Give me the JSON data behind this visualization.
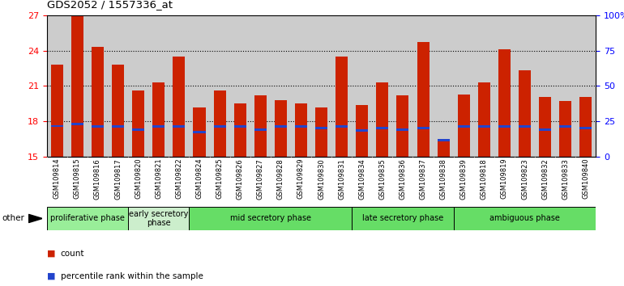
{
  "title": "GDS2052 / 1557336_at",
  "samples": [
    "GSM109814",
    "GSM109815",
    "GSM109816",
    "GSM109817",
    "GSM109820",
    "GSM109821",
    "GSM109822",
    "GSM109824",
    "GSM109825",
    "GSM109826",
    "GSM109827",
    "GSM109828",
    "GSM109829",
    "GSM109830",
    "GSM109831",
    "GSM109834",
    "GSM109835",
    "GSM109836",
    "GSM109837",
    "GSM109838",
    "GSM109839",
    "GSM109818",
    "GSM109819",
    "GSM109823",
    "GSM109832",
    "GSM109833",
    "GSM109840"
  ],
  "count_values": [
    22.8,
    26.9,
    24.3,
    22.8,
    20.6,
    21.3,
    23.5,
    19.2,
    20.6,
    19.5,
    20.2,
    19.8,
    19.5,
    19.2,
    23.5,
    19.4,
    21.3,
    20.2,
    24.7,
    16.5,
    20.3,
    21.3,
    24.1,
    22.3,
    20.1,
    19.7,
    20.1
  ],
  "percentile_values": [
    17.6,
    17.8,
    17.55,
    17.55,
    17.3,
    17.55,
    17.55,
    17.1,
    17.55,
    17.55,
    17.3,
    17.55,
    17.55,
    17.45,
    17.55,
    17.2,
    17.4,
    17.3,
    17.4,
    16.4,
    17.55,
    17.55,
    17.55,
    17.55,
    17.3,
    17.55,
    17.45
  ],
  "bar_color": "#CC2200",
  "blue_color": "#2244CC",
  "ymin": 15,
  "ymax": 27,
  "yticks_left": [
    15,
    18,
    21,
    24,
    27
  ],
  "yticks_right": [
    0,
    25,
    50,
    75,
    100
  ],
  "grid_ticks": [
    18,
    21,
    24
  ],
  "phases": [
    {
      "name": "proliferative phase",
      "start": 0,
      "end": 4,
      "color": "#99EE99"
    },
    {
      "name": "early secretory\nphase",
      "start": 4,
      "end": 7,
      "color": "#CCEECC"
    },
    {
      "name": "mid secretory phase",
      "start": 7,
      "end": 15,
      "color": "#66DD66"
    },
    {
      "name": "late secretory phase",
      "start": 15,
      "end": 20,
      "color": "#66DD66"
    },
    {
      "name": "ambiguous phase",
      "start": 20,
      "end": 27,
      "color": "#66DD66"
    }
  ],
  "plot_bg": "#CCCCCC",
  "fig_bg": "#FFFFFF",
  "xtick_bg": "#CCCCCC",
  "bar_width": 0.6
}
